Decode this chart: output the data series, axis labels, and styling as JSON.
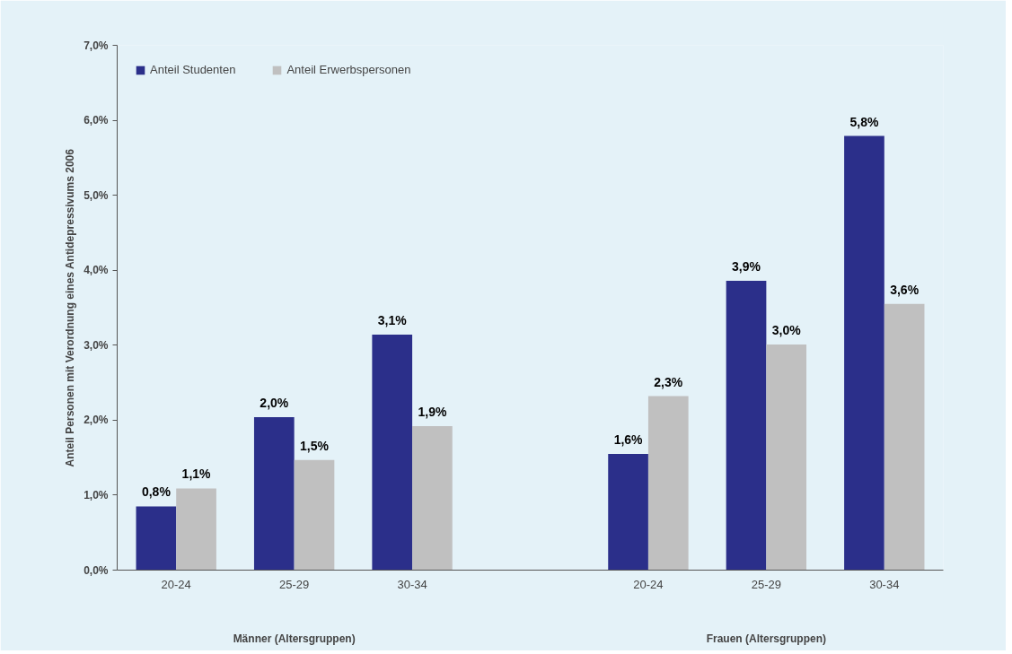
{
  "chart_data": {
    "type": "bar",
    "ylabel": "Anteil Personen mit Verordnung eines Antidepressivums 2006",
    "categories": [
      "20-24",
      "25-29",
      "30-34",
      null,
      "20-24",
      "25-29",
      "30-34"
    ],
    "annotations": [
      "Männer (Altersgruppen)",
      "Frauen (Altersgruppen)"
    ],
    "series": [
      {
        "name": "Anteil Studenten",
        "color": "#2b2f8a",
        "values": [
          0.85,
          2.04,
          3.14,
          null,
          1.55,
          3.86,
          5.79
        ],
        "value_labels": [
          "0,8%",
          "2,0%",
          "3,1%",
          null,
          "1,6%",
          "3,9%",
          "5,8%"
        ]
      },
      {
        "name": "Anteil Erwerbspersonen",
        "color": "#c0c0c0",
        "values": [
          1.09,
          1.47,
          1.92,
          null,
          2.32,
          3.01,
          3.55
        ],
        "value_labels": [
          "1,1%",
          "1,5%",
          "1,9%",
          null,
          "2,3%",
          "3,0%",
          "3,6%"
        ]
      }
    ],
    "ylim": [
      0,
      7
    ],
    "yticks": [
      {
        "value": 0,
        "label": "0,0%"
      },
      {
        "value": 1,
        "label": "1,0%"
      },
      {
        "value": 2,
        "label": "2,0%"
      },
      {
        "value": 3,
        "label": "3,0%"
      },
      {
        "value": 4,
        "label": "4,0%"
      },
      {
        "value": 5,
        "label": "5,0%"
      },
      {
        "value": 6,
        "label": "6,0%"
      },
      {
        "value": 7,
        "label": "7,0%"
      }
    ],
    "grid": false,
    "legend": "top left"
  }
}
